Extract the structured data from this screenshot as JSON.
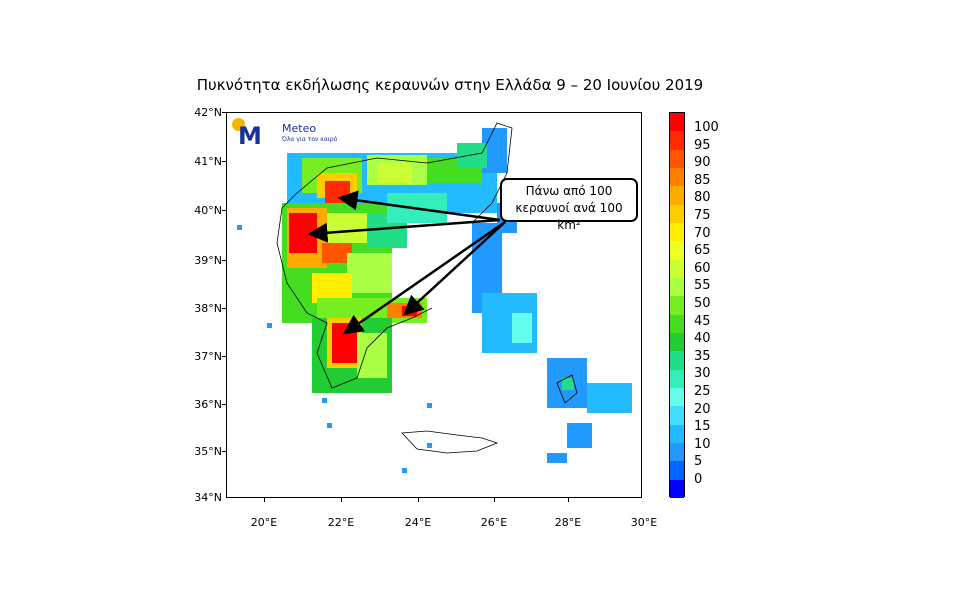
{
  "title": "Πυκνότητα εκδήλωσης κεραυνών στην Ελλάδα 9 – 20 Ιουνίου 2019",
  "logo": {
    "name": "Meteo",
    "tagline": "Όλα για τον καιρό",
    "mark": "M",
    "colors": {
      "sun": "#f4b400",
      "brand": "#17319a"
    }
  },
  "axes": {
    "lat_labels": [
      "42°N",
      "41°N",
      "40°N",
      "39°N",
      "38°N",
      "37°N",
      "36°N",
      "35°N",
      "34°N"
    ],
    "lon_labels": [
      "20°E",
      "22°E",
      "24°E",
      "26°E",
      "28°E",
      "30°E"
    ],
    "lat_range": [
      34,
      42
    ],
    "lon_range": [
      19,
      30
    ]
  },
  "callout": {
    "line1": "Πάνω από 100",
    "line2": "κεραυνοί ανά 100 km²"
  },
  "colorbar": {
    "labels": [
      "100",
      "95",
      "90",
      "85",
      "80",
      "75",
      "70",
      "65",
      "60",
      "55",
      "50",
      "45",
      "40",
      "35",
      "30",
      "25",
      "20",
      "15",
      "10",
      "5",
      "0"
    ],
    "colors": [
      "#ff0000",
      "#ff2a00",
      "#ff5500",
      "#ff7f00",
      "#ffaa00",
      "#ffcc00",
      "#ffee00",
      "#eeff22",
      "#ccff33",
      "#aaff44",
      "#77ee22",
      "#44dd22",
      "#22cc33",
      "#22dd88",
      "#33eebb",
      "#66ffee",
      "#44ddff",
      "#22bbff",
      "#2299ff",
      "#0066ff",
      "#0000ff"
    ]
  }
}
